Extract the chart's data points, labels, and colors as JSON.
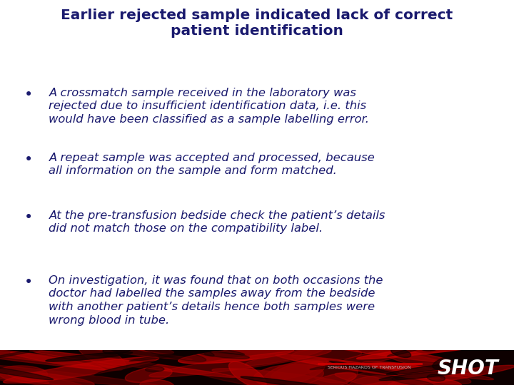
{
  "title_line1": "Earlier rejected sample indicated lack of correct",
  "title_line2": "patient identification",
  "title_color": "#1a1a6e",
  "title_fontsize": 14.5,
  "bullet_color": "#1a1a6e",
  "bullet_fontsize": 11.8,
  "bullets": [
    "A crossmatch sample received in the laboratory was\nrejected due to insufficient identification data, i.e. this\nwould have been classified as a sample labelling error.",
    "A repeat sample was accepted and processed, because\nall information on the sample and form matched.",
    "At the pre-transfusion bedside check the patient’s details\ndid not match those on the compatibility label.",
    "On investigation, it was found that on both occasions the\ndoctor had labelled the samples away from the bedside\nwith another patient’s details hence both samples were\nwrong blood in tube."
  ],
  "footer_text": "SERIOUS HAZARDS OF TRANSFUSION",
  "footer_shot": "SHOT",
  "bg_color": "#ffffff",
  "footer_bg_color": "#0d0000",
  "footer_bar_color": "#cc0000",
  "footer_text_color": "#bbbbbb",
  "footer_shot_color": "#ffffff"
}
